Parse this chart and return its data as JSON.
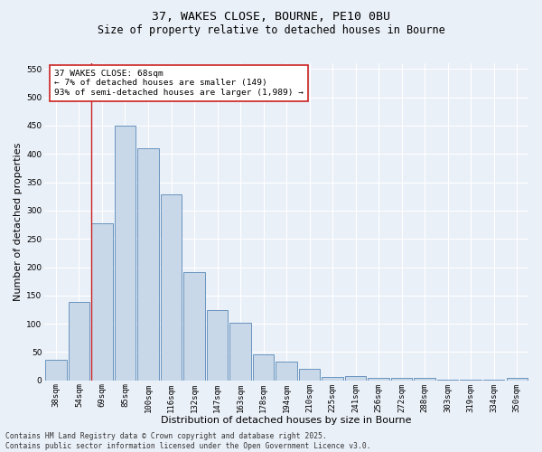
{
  "title": "37, WAKES CLOSE, BOURNE, PE10 0BU",
  "subtitle": "Size of property relative to detached houses in Bourne",
  "xlabel": "Distribution of detached houses by size in Bourne",
  "ylabel": "Number of detached properties",
  "categories": [
    "38sqm",
    "54sqm",
    "69sqm",
    "85sqm",
    "100sqm",
    "116sqm",
    "132sqm",
    "147sqm",
    "163sqm",
    "178sqm",
    "194sqm",
    "210sqm",
    "225sqm",
    "241sqm",
    "256sqm",
    "272sqm",
    "288sqm",
    "303sqm",
    "319sqm",
    "334sqm",
    "350sqm"
  ],
  "values": [
    36,
    138,
    278,
    450,
    410,
    328,
    191,
    125,
    102,
    46,
    33,
    20,
    6,
    7,
    4,
    4,
    4,
    1,
    1,
    1,
    5
  ],
  "bar_color": "#c8d8e8",
  "bar_edge_color": "#5888b8",
  "vline_x_index": 2,
  "vline_color": "#cc2222",
  "annotation_text": "37 WAKES CLOSE: 68sqm\n← 7% of detached houses are smaller (149)\n93% of semi-detached houses are larger (1,989) →",
  "annotation_box_color": "#ffffff",
  "annotation_box_edge": "#cc2222",
  "ylim": [
    0,
    560
  ],
  "yticks": [
    0,
    50,
    100,
    150,
    200,
    250,
    300,
    350,
    400,
    450,
    500,
    550
  ],
  "background_color": "#eaf0f8",
  "grid_color": "#ffffff",
  "footer": "Contains HM Land Registry data © Crown copyright and database right 2025.\nContains public sector information licensed under the Open Government Licence v3.0.",
  "title_fontsize": 9.5,
  "subtitle_fontsize": 8.5,
  "xlabel_fontsize": 8,
  "ylabel_fontsize": 8,
  "tick_fontsize": 6.5,
  "annotation_fontsize": 6.8,
  "footer_fontsize": 5.8
}
